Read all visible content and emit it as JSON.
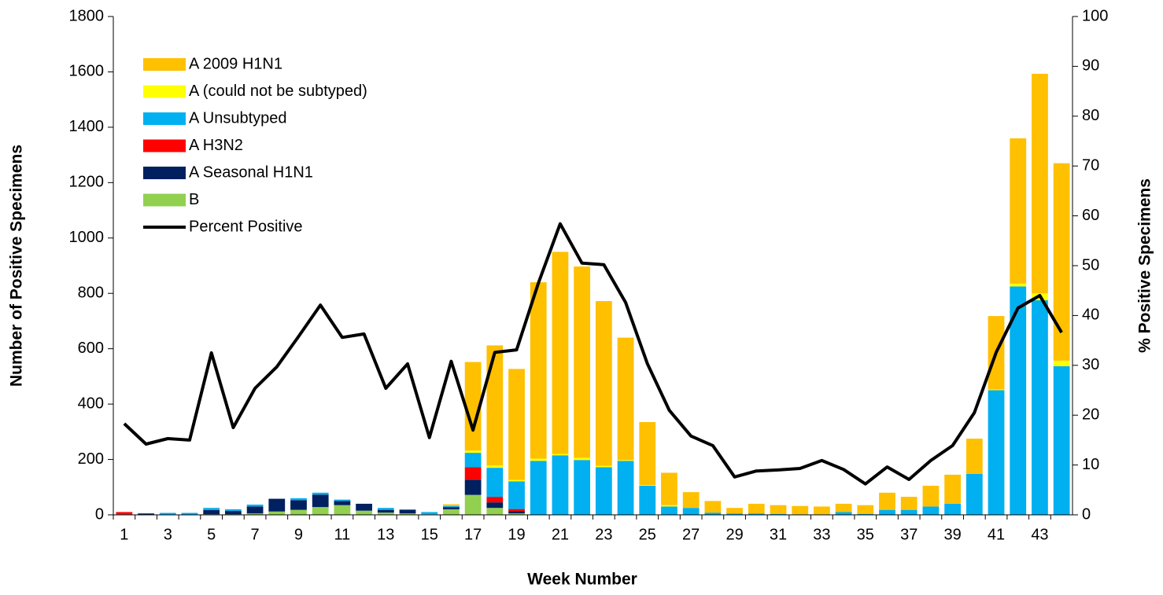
{
  "chart_data": {
    "type": "bar",
    "stacked": true,
    "x_label": "Week Number",
    "y_label": "Number of Positive Specimens",
    "y2_label": "% Positive Specimens",
    "categories": [
      1,
      null,
      3,
      null,
      5,
      null,
      7,
      null,
      9,
      null,
      11,
      null,
      13,
      null,
      15,
      null,
      17,
      null,
      19,
      null,
      21,
      null,
      23,
      null,
      25,
      null,
      27,
      null,
      29,
      null,
      31,
      null,
      33,
      null,
      35,
      null,
      37,
      null,
      39,
      null,
      41,
      null,
      43,
      null
    ],
    "ylim": [
      0,
      1800
    ],
    "yticks": [
      0,
      200,
      400,
      600,
      800,
      1000,
      1200,
      1400,
      1600,
      1800
    ],
    "y2lim": [
      0,
      100
    ],
    "y2ticks": [
      0,
      10,
      20,
      30,
      40,
      50,
      60,
      70,
      80,
      90,
      100
    ],
    "legend": "upper-left",
    "series": [
      {
        "name": "A 2009 H1N1",
        "color": "#FFC000",
        "values": [
          0,
          0,
          0,
          0,
          0,
          0,
          0,
          0,
          0,
          0,
          0,
          0,
          0,
          0,
          0,
          6,
          320,
          434,
          401,
          637,
          730,
          691,
          595,
          442,
          227,
          117,
          57,
          42,
          20,
          35,
          32,
          30,
          28,
          30,
          32,
          62,
          47,
          75,
          105,
          127,
          265,
          525,
          793,
          713
        ]
      },
      {
        "name": "A (could not be subtyped)",
        "color": "#FFFF00",
        "values": [
          0,
          0,
          0,
          0,
          0,
          0,
          0,
          0,
          0,
          0,
          0,
          0,
          0,
          0,
          0,
          0,
          8,
          8,
          5,
          8,
          5,
          8,
          5,
          3,
          3,
          5,
          0,
          0,
          0,
          0,
          0,
          0,
          0,
          0,
          0,
          0,
          0,
          0,
          0,
          0,
          3,
          10,
          25,
          20
        ]
      },
      {
        "name": "A Unsubtyped",
        "color": "#00B0F0",
        "values": [
          0,
          0,
          7,
          7,
          8,
          6,
          7,
          0,
          7,
          7,
          5,
          0,
          7,
          2,
          8,
          4,
          52,
          105,
          100,
          195,
          215,
          198,
          172,
          195,
          105,
          30,
          25,
          8,
          5,
          5,
          3,
          2,
          2,
          10,
          3,
          18,
          18,
          30,
          40,
          148,
          450,
          825,
          775,
          537
        ]
      },
      {
        "name": "A H3N2",
        "color": "#FF0000",
        "values": [
          8,
          0,
          0,
          0,
          0,
          0,
          0,
          0,
          0,
          0,
          0,
          0,
          0,
          0,
          0,
          0,
          45,
          20,
          8,
          0,
          0,
          0,
          0,
          0,
          0,
          0,
          0,
          0,
          0,
          0,
          0,
          0,
          0,
          0,
          0,
          0,
          0,
          0,
          0,
          0,
          0,
          0,
          0,
          0
        ]
      },
      {
        "name": "A Seasonal H1N1",
        "color": "#002060",
        "values": [
          2,
          5,
          0,
          0,
          15,
          12,
          25,
          46,
          35,
          45,
          15,
          25,
          10,
          13,
          0,
          8,
          55,
          20,
          8,
          0,
          0,
          0,
          0,
          0,
          0,
          0,
          0,
          0,
          0,
          0,
          0,
          0,
          0,
          0,
          0,
          0,
          0,
          0,
          0,
          0,
          0,
          0,
          0,
          0
        ]
      },
      {
        "name": "B",
        "color": "#92D050",
        "values": [
          0,
          0,
          0,
          0,
          2,
          2,
          5,
          12,
          18,
          28,
          35,
          15,
          8,
          5,
          2,
          20,
          72,
          25,
          5,
          0,
          0,
          0,
          0,
          0,
          0,
          0,
          0,
          0,
          0,
          0,
          0,
          0,
          0,
          0,
          0,
          0,
          0,
          0,
          0,
          0,
          0,
          0,
          0,
          0
        ]
      },
      {
        "name": "Percent Positive",
        "color": "#000000",
        "type": "line",
        "axis": "y2",
        "values": [
          18.3,
          14.2,
          15.3,
          15,
          32.5,
          17.5,
          25.4,
          29.7,
          35.8,
          42.1,
          35.6,
          36.3,
          25.4,
          30.3,
          15.5,
          30.8,
          17,
          32.6,
          33.1,
          46.5,
          58.4,
          50.5,
          50.2,
          42.6,
          30.3,
          21,
          15.8,
          13.9,
          7.6,
          8.8,
          9,
          9.3,
          10.9,
          9.1,
          6.2,
          9.6,
          7.1,
          10.9,
          13.9,
          20.5,
          32.6,
          41.5,
          44,
          36.6
        ]
      }
    ]
  }
}
